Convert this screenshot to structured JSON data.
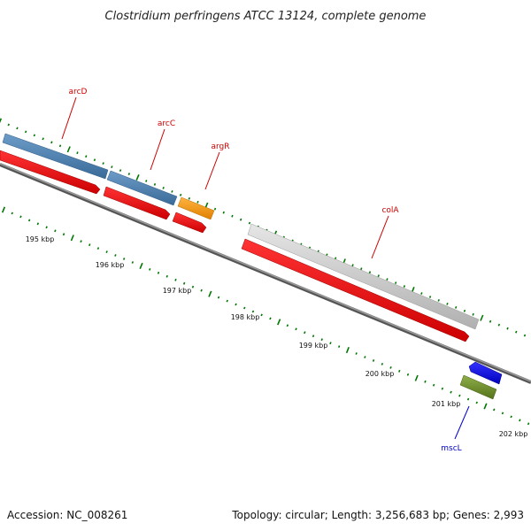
{
  "title": "Clostridium perfringens ATCC 13124, complete genome",
  "accession_text": "Accession: NC_008261",
  "summary_text": "Topology: circular; Length: 3,256,683 bp; Genes: 2,993",
  "ticks": [
    {
      "label": "195 kbp"
    },
    {
      "label": "196 kbp"
    },
    {
      "label": "197 kbp"
    },
    {
      "label": "198 kbp"
    },
    {
      "label": "199 kbp"
    },
    {
      "label": "200 kbp"
    },
    {
      "label": "201 kbp"
    },
    {
      "label": "202 kbp"
    }
  ],
  "gene_labels": {
    "arcD": "arcD",
    "arcC": "arcC",
    "argR": "argR",
    "colA": "colA",
    "mscL": "mscL"
  },
  "colors": {
    "cds_forward": "#ff0000",
    "cds_reverse": "#0000ff",
    "cog_blue": "#4a7fb0",
    "cog_orange": "#ff9900",
    "cog_grey": "#c8c8c8",
    "cog_green": "#6b8e23",
    "label_red": "#cc0000",
    "label_blue": "#0000cc",
    "tick_green": "#007700",
    "backbone": "#777777"
  }
}
